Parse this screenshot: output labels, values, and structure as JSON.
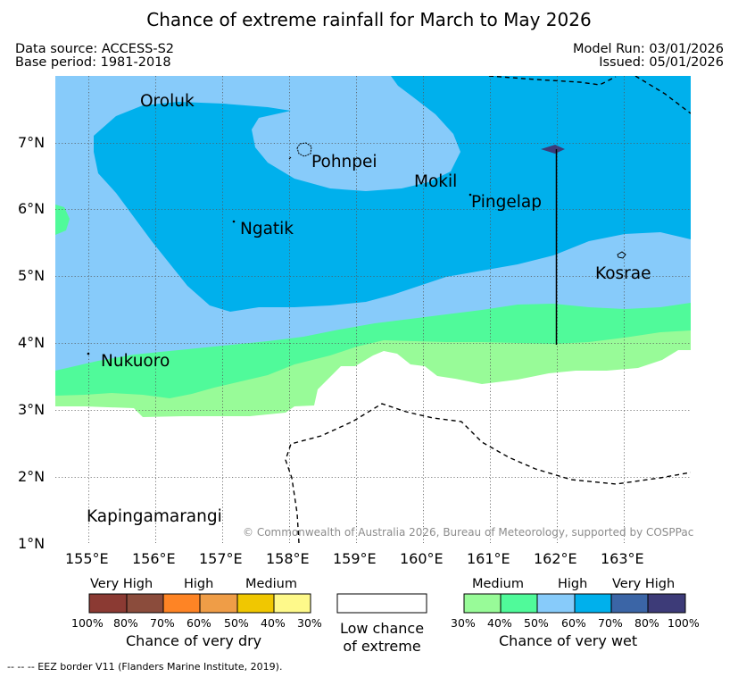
{
  "title": "Chance of extreme rainfall for March to May 2026",
  "data_source": "Data source: ACCESS-S2",
  "base_period": "Base period: 1981-2018",
  "model_run": "Model Run: 03/01/2026",
  "issued": "Issued: 05/01/2026",
  "map": {
    "lat_labels": [
      "7°N",
      "6°N",
      "5°N",
      "4°N",
      "3°N",
      "2°N",
      "1°N"
    ],
    "lon_labels": [
      "155°E",
      "156°E",
      "157°E",
      "158°E",
      "159°E",
      "160°E",
      "161°E",
      "162°E",
      "163°E"
    ],
    "places": {
      "oroluk": "Oroluk",
      "pohnpei": "Pohnpei",
      "mokil": "Mokil",
      "pingelap": "Pingelap",
      "ngatik": "Ngatik",
      "kosrae": "Kosrae",
      "nukuoro": "Nukuoro",
      "kapingamarangi": "Kapingamarangi"
    },
    "copyright": "© Commonwealth of Australia 2026, Bureau of Meteorology, supported by COSPPac"
  },
  "colors": {
    "wet_30_40": "#98fb98",
    "wet_40_50": "#50fa9a",
    "wet_50_60": "#87cbfa",
    "wet_60_70": "#00b0ec",
    "wet_70_80": "#3b65a6",
    "wet_80_100": "#3d3b78",
    "dry_100_80": "#8b3a33",
    "dry_80_70": "#8b4c3c",
    "dry_70_60": "#fe8425",
    "dry_60_50": "#ef9d47",
    "dry_50_40": "#f0c701",
    "dry_40_30": "#fef98a"
  },
  "legend": {
    "dry": {
      "levels": [
        "Very High",
        "High",
        "Medium"
      ],
      "ticks": [
        "100%",
        "80%",
        "70%",
        "60%",
        "50%",
        "40%",
        "30%"
      ],
      "caption": "Chance of very dry"
    },
    "low": {
      "caption_line1": "Low chance",
      "caption_line2": "of extreme"
    },
    "wet": {
      "levels": [
        "Medium",
        "High",
        "Very High"
      ],
      "ticks": [
        "30%",
        "40%",
        "50%",
        "60%",
        "70%",
        "80%",
        "100%"
      ],
      "caption": "Chance of very wet"
    }
  },
  "footnote": "--  --  -- EEZ border V11 (Flanders Marine Institute, 2019)."
}
